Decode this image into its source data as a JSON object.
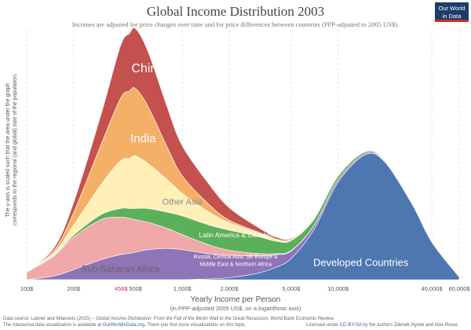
{
  "header": {
    "title": "Global Income Distribution 2003",
    "subtitle": "Incomes are adjusted for price changes over time and for price differences between countries (PPP-adjusted to 2005 US$).",
    "logo_line1": "Our World",
    "logo_line2": "in Data"
  },
  "chart_data": {
    "type": "area",
    "stacked": true,
    "title": "Global Income Distribution 2003",
    "xlabel": "Yearly Income per Person",
    "xlabel_note": "(in PPP-adjusted 2005 US$, on a logarithmic axis)",
    "ylabel": "The y-axis is scaled such that the area under the graph corresponds to the regional (and global) size of the population.",
    "xscale": "log",
    "xlim": [
      100,
      60000
    ],
    "ylim": [
      0,
      1
    ],
    "grid": "vertical dashed at ticks",
    "legend": "inline labels on areas",
    "x_ticks": [
      {
        "value": 100,
        "label": "100$"
      },
      {
        "value": 200,
        "label": "200$"
      },
      {
        "value": 500,
        "label": "500$"
      },
      {
        "value": 1000,
        "label": "1,000$"
      },
      {
        "value": 2000,
        "label": "2,000$"
      },
      {
        "value": 5000,
        "label": "5,000$"
      },
      {
        "value": 10000,
        "label": "10,000$"
      },
      {
        "value": 40000,
        "label": "40,000$"
      },
      {
        "value": 60000,
        "label": "60,000$"
      }
    ],
    "marker": {
      "value": 456,
      "label": "456$",
      "color": "#d4237a"
    },
    "x": [
      100,
      150,
      200,
      300,
      400,
      456,
      500,
      600,
      800,
      1000,
      1500,
      2000,
      3000,
      4000,
      5000,
      7000,
      10000,
      15000,
      20000,
      30000,
      40000,
      60000
    ],
    "series": [
      {
        "name": "Developed Countries",
        "color": "#4e76b0",
        "values": [
          0.0,
          0.0,
          0.0,
          0.0,
          0.0,
          0.0,
          0.0,
          0.0,
          0.0,
          0.0,
          0.003,
          0.008,
          0.025,
          0.05,
          0.085,
          0.2,
          0.39,
          0.5,
          0.47,
          0.3,
          0.15,
          0.01
        ]
      },
      {
        "name": "Russia, Central Asia, SE Europe & Middle East & Northern Africa",
        "color": "#8f74b8",
        "values": [
          0.0,
          0.015,
          0.04,
          0.08,
          0.1,
          0.105,
          0.11,
          0.12,
          0.125,
          0.12,
          0.1,
          0.09,
          0.07,
          0.05,
          0.03,
          0.015,
          0.01,
          0.005,
          0.004,
          0.002,
          0.001,
          0.0
        ]
      },
      {
        "name": "Sub-Saharan Africa",
        "color": "#f0a8a8",
        "values": [
          0.03,
          0.08,
          0.13,
          0.16,
          0.15,
          0.14,
          0.13,
          0.11,
          0.08,
          0.06,
          0.035,
          0.02,
          0.01,
          0.004,
          0.002,
          0.001,
          0.0,
          0.0,
          0.0,
          0.0,
          0.0,
          0.0
        ]
      },
      {
        "name": "Latin America & Caribbean",
        "color": "#5db05a",
        "values": [
          0.0,
          0.003,
          0.008,
          0.02,
          0.035,
          0.04,
          0.045,
          0.055,
          0.065,
          0.075,
          0.08,
          0.08,
          0.07,
          0.05,
          0.04,
          0.025,
          0.014,
          0.007,
          0.003,
          0.002,
          0.001,
          0.0
        ]
      },
      {
        "name": "Other Asia",
        "color": "#fff0b8",
        "values": [
          0.0,
          0.01,
          0.04,
          0.12,
          0.19,
          0.2,
          0.21,
          0.18,
          0.13,
          0.09,
          0.05,
          0.03,
          0.015,
          0.008,
          0.005,
          0.003,
          0.001,
          0.0,
          0.0,
          0.0,
          0.0,
          0.0
        ]
      },
      {
        "name": "India",
        "color": "#f5b068",
        "values": [
          0.0,
          0.01,
          0.05,
          0.16,
          0.25,
          0.27,
          0.27,
          0.23,
          0.13,
          0.07,
          0.03,
          0.01,
          0.003,
          0.001,
          0.0,
          0.0,
          0.0,
          0.0,
          0.0,
          0.0,
          0.0,
          0.0
        ]
      },
      {
        "name": "China",
        "color": "#c4514e",
        "values": [
          0.0,
          0.01,
          0.04,
          0.12,
          0.21,
          0.23,
          0.24,
          0.22,
          0.16,
          0.12,
          0.08,
          0.05,
          0.02,
          0.008,
          0.004,
          0.002,
          0.001,
          0.0,
          0.0,
          0.0,
          0.0,
          0.0
        ]
      }
    ],
    "labels": [
      {
        "text": "China",
        "color": "#ffffff",
        "x": 600,
        "y": 0.83
      },
      {
        "text": "India",
        "color": "#ffffff",
        "x": 560,
        "y": 0.55
      },
      {
        "text": "Other Asia",
        "color": "#8a8a8a",
        "x": 1000,
        "y": 0.3
      },
      {
        "text": "Latin America & Caribbean",
        "color": "#ffffff",
        "x": 2300,
        "y": 0.17
      },
      {
        "text": "Russia, Central Asia, SE Europe &",
        "color": "#ffffff",
        "x": 2200,
        "y": 0.085
      },
      {
        "text": "Middle East & Northern Africa",
        "color": "#ffffff",
        "x": 2200,
        "y": 0.055
      },
      {
        "text": "Sub-Saharan Africa",
        "color": "#666666",
        "x": 400,
        "y": 0.03
      },
      {
        "text": "Developed Countries",
        "color": "#ffffff",
        "x": 14000,
        "y": 0.055
      }
    ]
  },
  "footer": {
    "source_prefix": "Data source: Lakner and Milanovic (2015) – ",
    "source_work": "Global Income Distribution: From the Fall of the Berlin Wall to the Great Recession",
    "source_suffix": ", World Bank Economic Review.",
    "avail_prefix": "The interactive data visualization is available at ",
    "avail_link": "OurWorldinData.org",
    "avail_suffix": ". There you find more visualizations on this topic.",
    "license_prefix": "Licensed under ",
    "license_link": "CC-BY-SA",
    "license_suffix": " by the authors Zdenek Hynek and Max Roser."
  }
}
